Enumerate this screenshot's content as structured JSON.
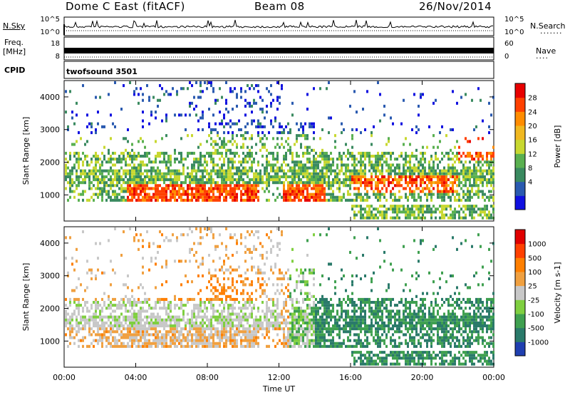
{
  "header": {
    "station": "Dome C East (fitACF)",
    "beam": "Beam 08",
    "date": "26/Nov/2014"
  },
  "left_labels": {
    "nsky": "N.Sky",
    "freq": "Freq.",
    "freq_unit": "[MHz]",
    "cpid": "CPID"
  },
  "right_labels": {
    "nsearch": "N.Search",
    "nave": "Nave"
  },
  "colors": {
    "power": [
      "#1010e0",
      "#2a5ab0",
      "#3a8a60",
      "#5ab050",
      "#c8d830",
      "#f0b820",
      "#ff8c00",
      "#ff4000",
      "#e80000"
    ],
    "velocity": [
      "#1f3fb0",
      "#2a7a6a",
      "#3fa050",
      "#7fcf40",
      "#c8c8c8",
      "#f0a040",
      "#ff7f00",
      "#ff4000",
      "#e00000"
    ]
  },
  "chart_data": [
    {
      "type": "line",
      "panel": "noise",
      "ylabel_left": "N.Sky",
      "ylabel_right": "N.Search",
      "yticks_left": [
        "10^5",
        "10^0"
      ],
      "yticks_right": [
        "10^5",
        "10^0"
      ]
    },
    {
      "type": "line",
      "panel": "frequency",
      "ylabel_left": "Freq. [MHz]",
      "ylabel_right": "Nave",
      "yticks_left": [
        "18",
        "8"
      ],
      "yticks_right": [
        "60",
        "0"
      ]
    },
    {
      "type": "table",
      "panel": "cpid",
      "label": "CPID",
      "value": "twofsound 3501"
    },
    {
      "type": "heatmap",
      "panel": "power",
      "ylabel": "Slant Range [km]",
      "yticks": [
        "1000",
        "2000",
        "3000",
        "4000"
      ],
      "ylim": [
        200,
        4500
      ],
      "xlim": [
        "00:00",
        "24:00"
      ],
      "colorbar": {
        "label": "Power [dB]",
        "ticks": [
          "4",
          "8",
          "12",
          "16",
          "20",
          "24",
          "28"
        ]
      }
    },
    {
      "type": "heatmap",
      "panel": "velocity",
      "ylabel": "Slant Range [km]",
      "yticks": [
        "1000",
        "2000",
        "3000",
        "4000"
      ],
      "ylim": [
        200,
        4500
      ],
      "xlim": [
        "00:00",
        "24:00"
      ],
      "colorbar": {
        "label": "Velocity [m s-1]",
        "ticks": [
          "1000",
          "500",
          "100",
          "25",
          "-25",
          "-100",
          "-500",
          "-1000"
        ]
      }
    },
    {
      "type": "heatmap",
      "panel": "time-axis",
      "xlabel": "Time UT",
      "xticks": [
        "00:00",
        "04:00",
        "08:00",
        "12:00",
        "16:00",
        "20:00",
        "00:00"
      ]
    }
  ]
}
